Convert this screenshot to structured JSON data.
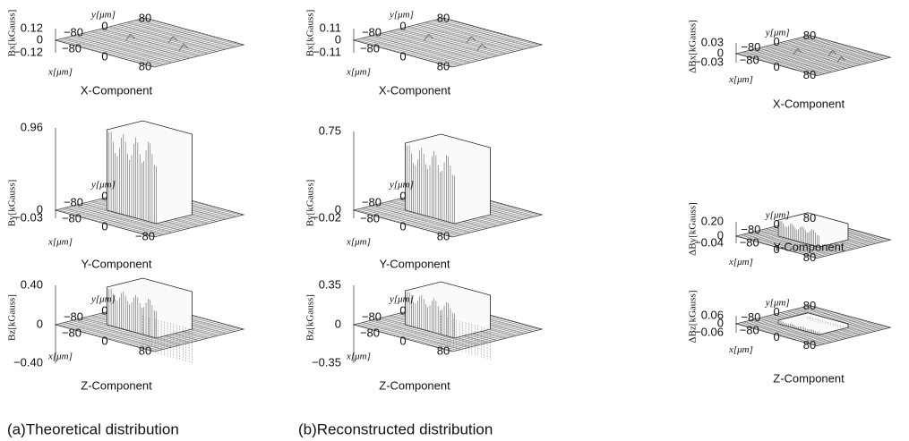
{
  "columns": [
    {
      "caption": "(a)Theoretical distribution",
      "panels": [
        {
          "zlabel": "Bx[kGauss]",
          "zticks": [
            "0.12",
            "0",
            "−0.12"
          ],
          "ylabel": "y[μm]",
          "yticks": [
            "−80",
            "0",
            "80"
          ],
          "xlabel": "x[μm]",
          "xticks": [
            "−80",
            "0",
            "80"
          ],
          "title": "X-Component"
        },
        {
          "zlabel": "By[kGauss]",
          "zticks": [
            "0.96",
            "0",
            "−0.03"
          ],
          "ylabel": "y[μm]",
          "yticks": [
            "−80",
            "0"
          ],
          "xlabel": "x[μm]",
          "xticks": [
            "−80",
            "0",
            "−80"
          ],
          "title": "Y-Component"
        },
        {
          "zlabel": "Bz[kGauss]",
          "zticks": [
            "0.40",
            "0",
            "−0.40"
          ],
          "ylabel": "y[μm]",
          "yticks": [
            "−80",
            "0"
          ],
          "xlabel": "x[μm]",
          "xticks": [
            "−80",
            "0",
            "80"
          ],
          "title": "Z-Component"
        }
      ]
    },
    {
      "caption": "(b)Reconstructed distribution",
      "panels": [
        {
          "zlabel": "Bx[kGauss]",
          "zticks": [
            "0.11",
            "0",
            "−0.11"
          ],
          "ylabel": "y[μm]",
          "yticks": [
            "−80",
            "0",
            "80"
          ],
          "xlabel": "x[μm]",
          "xticks": [
            "−80",
            "0",
            "80"
          ],
          "title": "X-Component"
        },
        {
          "zlabel": "By[kGauss]",
          "zticks": [
            "0.75",
            "0",
            "−0.02"
          ],
          "ylabel": "y[μm]",
          "yticks": [
            "−80",
            "0"
          ],
          "xlabel": "x[μm]",
          "xticks": [
            "−80",
            "0",
            "80"
          ],
          "title": "Y-Component"
        },
        {
          "zlabel": "Bz[kGauss]",
          "zticks": [
            "0.35",
            "0",
            "−0.35"
          ],
          "ylabel": "y[μm]",
          "yticks": [
            "−80",
            "0"
          ],
          "xlabel": "x[μm]",
          "xticks": [
            "−80",
            "0",
            "80"
          ],
          "title": "Z-Component"
        }
      ]
    },
    {
      "panels": [
        {
          "zlabel": "ΔBx[kGauss]",
          "zticks": [
            "0.03",
            "0",
            "−0.03"
          ],
          "ylabel": "y[μm]",
          "yticks": [
            "−80",
            "0",
            "80"
          ],
          "xlabel": "x[μm]",
          "xticks": [
            "−80",
            "0",
            "80"
          ],
          "title": "X-Component"
        },
        {
          "zlabel": "ΔBy[kGauss]",
          "zticks": [
            "0.20",
            "0",
            "−0.04"
          ],
          "ylabel": "y[μm]",
          "yticks": [
            "−80",
            "0",
            "80"
          ],
          "xlabel": "x[μm]",
          "xticks": [
            "−80",
            "0",
            "80"
          ],
          "title": "Y-Component"
        },
        {
          "zlabel": "ΔBz[kGauss]",
          "zticks": [
            "0.06",
            "0",
            "−0.06"
          ],
          "ylabel": "y[μm]",
          "yticks": [
            "−80",
            "0",
            "80"
          ],
          "xlabel": "x[μm]",
          "xticks": [
            "−80",
            "0",
            "80"
          ],
          "title": "Z-Component"
        }
      ]
    }
  ]
}
